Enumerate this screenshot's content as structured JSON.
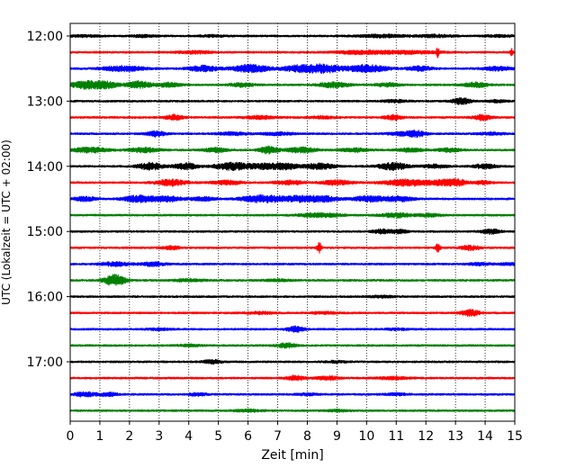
{
  "chart_data": {
    "type": "line",
    "title": "",
    "xlabel": "Zeit  [min]",
    "ylabel": "UTC (Lokalzeit = UTC + 02:00)",
    "xlim": [
      0,
      15
    ],
    "x_ticks": [
      "0",
      "1",
      "2",
      "3",
      "4",
      "5",
      "6",
      "7",
      "8",
      "9",
      "10",
      "11",
      "12",
      "13",
      "14",
      "15"
    ],
    "y_ticks": [
      "12:00",
      "13:00",
      "14:00",
      "15:00",
      "16:00",
      "17:00"
    ],
    "grid": "vertical-dotted",
    "row_colors": [
      "#000000",
      "#ff0000",
      "#0000ff",
      "#008000"
    ],
    "rows": [
      {
        "label": "12:00",
        "bursts": [
          [
            0.5,
            0.1,
            0.5
          ],
          [
            2.5,
            0.12,
            0.4
          ],
          [
            4.8,
            0.1,
            0.4
          ],
          [
            10.5,
            0.16,
            0.8
          ],
          [
            12.3,
            0.14,
            0.6
          ],
          [
            14.5,
            0.1,
            0.5
          ]
        ]
      },
      {
        "label": "12:15",
        "bursts": [
          [
            4.2,
            0.14,
            0.6
          ],
          [
            9.8,
            0.18,
            0.8
          ],
          [
            11.4,
            0.16,
            1.0
          ],
          [
            12.4,
            0.5,
            0.05
          ],
          [
            14.9,
            0.4,
            0.05
          ]
        ]
      },
      {
        "label": "12:30",
        "bursts": [
          [
            1.8,
            0.3,
            0.7
          ],
          [
            4.5,
            0.32,
            0.5
          ],
          [
            6.1,
            0.45,
            0.6
          ],
          [
            7.8,
            0.4,
            0.6
          ],
          [
            8.6,
            0.42,
            0.5
          ],
          [
            10.0,
            0.42,
            0.7
          ],
          [
            11.8,
            0.26,
            0.4
          ],
          [
            14.4,
            0.22,
            0.5
          ]
        ]
      },
      {
        "label": "12:45",
        "bursts": [
          [
            0.5,
            0.42,
            0.5
          ],
          [
            1.2,
            0.38,
            0.4
          ],
          [
            2.3,
            0.4,
            0.4
          ],
          [
            3.3,
            0.24,
            0.4
          ],
          [
            5.8,
            0.22,
            0.4
          ],
          [
            8.9,
            0.3,
            0.5
          ],
          [
            10.7,
            0.2,
            0.4
          ],
          [
            13.7,
            0.26,
            0.4
          ]
        ]
      },
      {
        "label": "13:00",
        "bursts": [
          [
            13.2,
            0.38,
            0.3
          ],
          [
            11.0,
            0.14,
            0.4
          ],
          [
            14.4,
            0.12,
            0.3
          ]
        ]
      },
      {
        "label": "13:15",
        "bursts": [
          [
            3.5,
            0.3,
            0.3
          ],
          [
            6.4,
            0.18,
            0.5
          ],
          [
            10.9,
            0.26,
            0.3
          ],
          [
            13.9,
            0.3,
            0.3
          ],
          [
            8.5,
            0.12,
            0.5
          ]
        ]
      },
      {
        "label": "13:30",
        "bursts": [
          [
            2.9,
            0.3,
            0.3
          ],
          [
            5.5,
            0.16,
            0.5
          ],
          [
            7.0,
            0.16,
            0.5
          ],
          [
            11.2,
            0.2,
            0.5
          ],
          [
            11.7,
            0.3,
            0.3
          ],
          [
            14.2,
            0.14,
            0.4
          ]
        ]
      },
      {
        "label": "13:45",
        "bursts": [
          [
            0.7,
            0.3,
            0.6
          ],
          [
            2.5,
            0.26,
            0.5
          ],
          [
            4.9,
            0.24,
            0.4
          ],
          [
            6.7,
            0.45,
            0.3
          ],
          [
            7.8,
            0.3,
            0.5
          ],
          [
            9.6,
            0.2,
            0.5
          ],
          [
            11.5,
            0.22,
            0.4
          ],
          [
            12.8,
            0.2,
            0.4
          ]
        ]
      },
      {
        "label": "14:00",
        "bursts": [
          [
            2.7,
            0.4,
            0.4
          ],
          [
            3.9,
            0.36,
            0.4
          ],
          [
            5.5,
            0.42,
            0.6
          ],
          [
            6.6,
            0.3,
            0.5
          ],
          [
            7.3,
            0.3,
            0.4
          ],
          [
            8.4,
            0.34,
            0.5
          ],
          [
            10.9,
            0.4,
            0.5
          ],
          [
            12.3,
            0.2,
            0.4
          ],
          [
            14.0,
            0.24,
            0.4
          ]
        ]
      },
      {
        "label": "14:15",
        "bursts": [
          [
            3.4,
            0.36,
            0.5
          ],
          [
            5.3,
            0.22,
            0.5
          ],
          [
            7.4,
            0.22,
            0.5
          ],
          [
            9.0,
            0.26,
            0.5
          ],
          [
            11.4,
            0.38,
            0.8
          ],
          [
            12.6,
            0.28,
            0.4
          ],
          [
            13.1,
            0.3,
            0.3
          ],
          [
            13.9,
            0.18,
            0.3
          ]
        ]
      },
      {
        "label": "14:30",
        "bursts": [
          [
            0.5,
            0.24,
            0.4
          ],
          [
            2.3,
            0.4,
            0.5
          ],
          [
            3.3,
            0.3,
            0.5
          ],
          [
            4.5,
            0.2,
            0.4
          ],
          [
            6.5,
            0.42,
            0.7
          ],
          [
            7.7,
            0.3,
            0.5
          ],
          [
            8.5,
            0.34,
            0.5
          ],
          [
            10.1,
            0.3,
            0.6
          ],
          [
            11.1,
            0.26,
            0.5
          ]
        ]
      },
      {
        "label": "14:45",
        "bursts": [
          [
            8.4,
            0.24,
            0.7
          ],
          [
            11.0,
            0.26,
            0.5
          ],
          [
            12.1,
            0.16,
            0.4
          ]
        ]
      },
      {
        "label": "15:00",
        "bursts": [
          [
            10.5,
            0.22,
            0.3
          ],
          [
            11.1,
            0.2,
            0.3
          ],
          [
            14.2,
            0.26,
            0.3
          ]
        ]
      },
      {
        "label": "15:15",
        "bursts": [
          [
            3.4,
            0.18,
            0.3
          ],
          [
            8.4,
            0.6,
            0.08
          ],
          [
            12.4,
            0.45,
            0.08
          ],
          [
            13.5,
            0.26,
            0.3
          ]
        ]
      },
      {
        "label": "15:30",
        "bursts": [
          [
            1.5,
            0.22,
            0.5
          ],
          [
            2.8,
            0.22,
            0.4
          ],
          [
            13.8,
            0.14,
            0.4
          ],
          [
            14.8,
            0.12,
            0.3
          ]
        ]
      },
      {
        "label": "15:45",
        "bursts": [
          [
            1.5,
            0.65,
            0.35
          ],
          [
            4.0,
            0.14,
            0.5
          ],
          [
            7.0,
            0.1,
            0.5
          ]
        ]
      },
      {
        "label": "16:00",
        "bursts": [
          [
            10.5,
            0.1,
            0.5
          ]
        ]
      },
      {
        "label": "16:15",
        "bursts": [
          [
            6.4,
            0.12,
            0.5
          ],
          [
            13.5,
            0.36,
            0.3
          ],
          [
            8.6,
            0.1,
            0.5
          ]
        ]
      },
      {
        "label": "16:30",
        "bursts": [
          [
            7.6,
            0.32,
            0.3
          ],
          [
            3.0,
            0.1,
            0.4
          ],
          [
            11.0,
            0.1,
            0.4
          ]
        ]
      },
      {
        "label": "16:45",
        "bursts": [
          [
            7.3,
            0.28,
            0.3
          ],
          [
            4.0,
            0.1,
            0.4
          ]
        ]
      },
      {
        "label": "17:00",
        "bursts": [
          [
            4.8,
            0.22,
            0.3
          ],
          [
            9.0,
            0.1,
            0.4
          ]
        ]
      },
      {
        "label": "17:15",
        "bursts": [
          [
            7.6,
            0.26,
            0.3
          ],
          [
            8.7,
            0.2,
            0.4
          ],
          [
            10.9,
            0.16,
            0.5
          ]
        ]
      },
      {
        "label": "17:30",
        "bursts": [
          [
            0.5,
            0.24,
            0.4
          ],
          [
            1.3,
            0.18,
            0.3
          ],
          [
            4.3,
            0.14,
            0.3
          ],
          [
            8.0,
            0.1,
            0.4
          ],
          [
            11.0,
            0.12,
            0.4
          ]
        ]
      },
      {
        "label": "17:45",
        "bursts": [
          [
            6.0,
            0.12,
            0.5
          ],
          [
            9.0,
            0.1,
            0.4
          ]
        ]
      }
    ]
  }
}
